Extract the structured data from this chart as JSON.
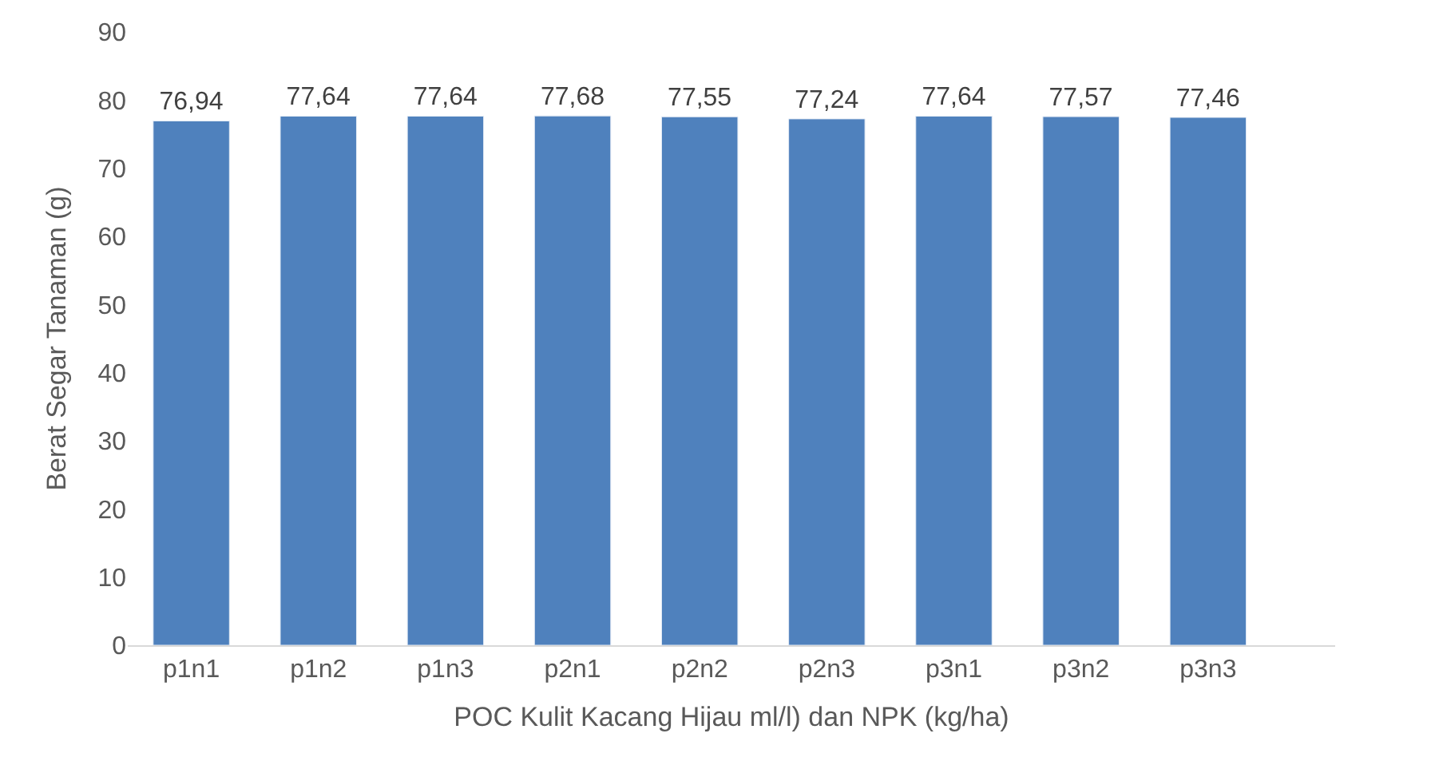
{
  "chart_data": {
    "type": "bar",
    "xlabel": "POC Kulit Kacang Hijau ml/l) dan NPK (kg/ha)",
    "ylabel": "Berat Segar Tanaman (g)",
    "categories": [
      "p1n1",
      "p1n2",
      "p1n3",
      "p2n1",
      "p2n2",
      "p2n3",
      "p3n1",
      "p3n2",
      "p3n3"
    ],
    "values": [
      76.94,
      77.64,
      77.64,
      77.68,
      77.55,
      77.24,
      77.64,
      77.57,
      77.46
    ],
    "value_labels": [
      "76,94",
      "77,64",
      "77,64",
      "77,68",
      "77,55",
      "77,24",
      "77,64",
      "77,57",
      "77,46"
    ],
    "color": "#4f81bd",
    "ylim": [
      0,
      90
    ],
    "yticks": [
      0,
      10,
      20,
      30,
      40,
      50,
      60,
      70,
      80,
      90
    ],
    "legend": false
  }
}
